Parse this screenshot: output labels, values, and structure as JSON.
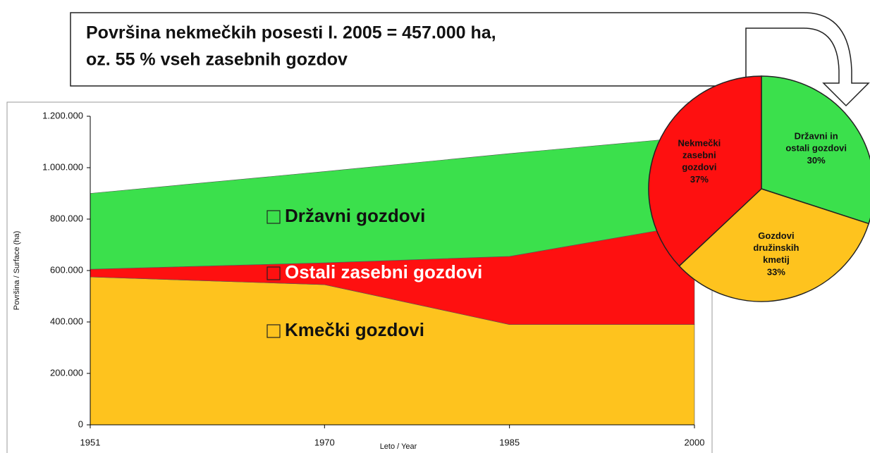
{
  "chart_data": [
    {
      "type": "area",
      "annotations": [
        "Površina nekmečkih posesti l. 2005 = 457.000 ha,",
        "oz. 55 % vseh  zasebnih gozdov"
      ],
      "x_label": "Leto / Year",
      "y_label": "Površina / Surface (ha)",
      "x": [
        1951,
        1970,
        1985,
        2000
      ],
      "xlim": [
        1951,
        2000
      ],
      "xticks": [
        1951,
        1970,
        1985,
        2000
      ],
      "ylim": [
        0,
        1200000
      ],
      "yticks": [
        0,
        {
          "value": 200000,
          "label": "200.000"
        },
        {
          "value": 400000,
          "label": "400.000"
        },
        {
          "value": 600000,
          "label": "600.000"
        },
        {
          "value": 800000,
          "label": "800.000"
        },
        {
          "value": 1000000,
          "label": "1.000.000"
        },
        {
          "value": 1200000,
          "label": "1.200.000"
        }
      ],
      "stacked": true,
      "series": [
        {
          "name": "Kmečki gozdovi",
          "color": "#fec31e",
          "values": [
            575000,
            545000,
            390000,
            390000
          ]
        },
        {
          "name": "Ostali zasebni gozdovi",
          "color": "#fe1010",
          "values": [
            30000,
            85000,
            265000,
            390000
          ]
        },
        {
          "name": "Državni gozdovi",
          "color": "#3be04c",
          "values": [
            295000,
            355000,
            400000,
            340000
          ]
        }
      ]
    },
    {
      "type": "pie",
      "categories": [
        "Državni in ostali gozdovi",
        "Gozdovi družinskih kmetij",
        "Nekmečki zasebni gozdovi"
      ],
      "values": [
        30,
        33,
        37
      ],
      "value_labels": [
        "30%",
        "33%",
        "37%"
      ],
      "colors": [
        "#3be04c",
        "#fec31e",
        "#fe1010"
      ]
    }
  ]
}
